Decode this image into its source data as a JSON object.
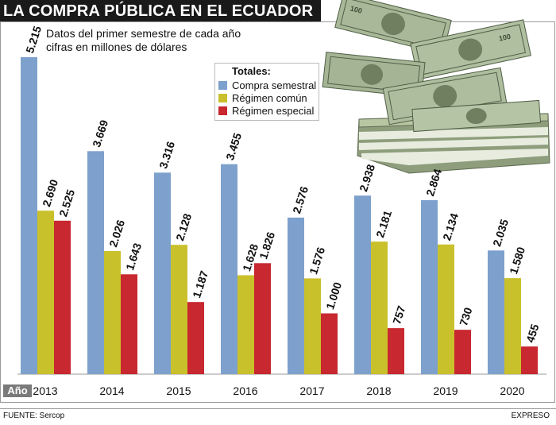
{
  "header": {
    "title": "LA COMPRA PÚBLICA EN EL ECUADOR"
  },
  "subtitle": {
    "line1": "Datos del primer semestre de cada año",
    "line2": "cifras en millones de dólares"
  },
  "legend": {
    "title": "Totales:",
    "items": [
      {
        "label": "Compra semestral",
        "color": "#7da1cc"
      },
      {
        "label": "Régimen común",
        "color": "#c9c12c"
      },
      {
        "label": "Régimen especial",
        "color": "#c8282f"
      }
    ]
  },
  "axis": {
    "badge": "Año"
  },
  "footer": {
    "source": "FUENTE: Sercop",
    "credit": "EXPRESO"
  },
  "chart_data": {
    "type": "bar",
    "title": "LA COMPRA PÚBLICA EN EL ECUADOR",
    "subtitle": "Datos del primer semestre de cada año, cifras en millones de dólares",
    "xlabel": "Año",
    "ylabel": "",
    "ylim": [
      0,
      5215
    ],
    "categories": [
      "2013",
      "2014",
      "2015",
      "2016",
      "2017",
      "2018",
      "2019",
      "2020"
    ],
    "series": [
      {
        "name": "Compra semestral",
        "color": "#7da1cc",
        "values": [
          5215,
          3669,
          3316,
          3455,
          2576,
          2938,
          2864,
          2035
        ],
        "labels": [
          "5.215",
          "3.669",
          "3.316",
          "3.455",
          "2.576",
          "2.938",
          "2.864",
          "2.035"
        ]
      },
      {
        "name": "Régimen común",
        "color": "#c9c12c",
        "values": [
          2690,
          2026,
          2128,
          1628,
          1576,
          2181,
          2134,
          1580
        ],
        "labels": [
          "2.690",
          "2.026",
          "2.128",
          "1.628",
          "1.576",
          "2.181",
          "2.134",
          "1.580"
        ]
      },
      {
        "name": "Régimen especial",
        "color": "#c8282f",
        "values": [
          2525,
          1643,
          1187,
          1826,
          1000,
          757,
          730,
          455
        ],
        "labels": [
          "2.525",
          "1.643",
          "1.187",
          "1.826",
          "1.000",
          "757",
          "730",
          "455"
        ]
      }
    ]
  }
}
